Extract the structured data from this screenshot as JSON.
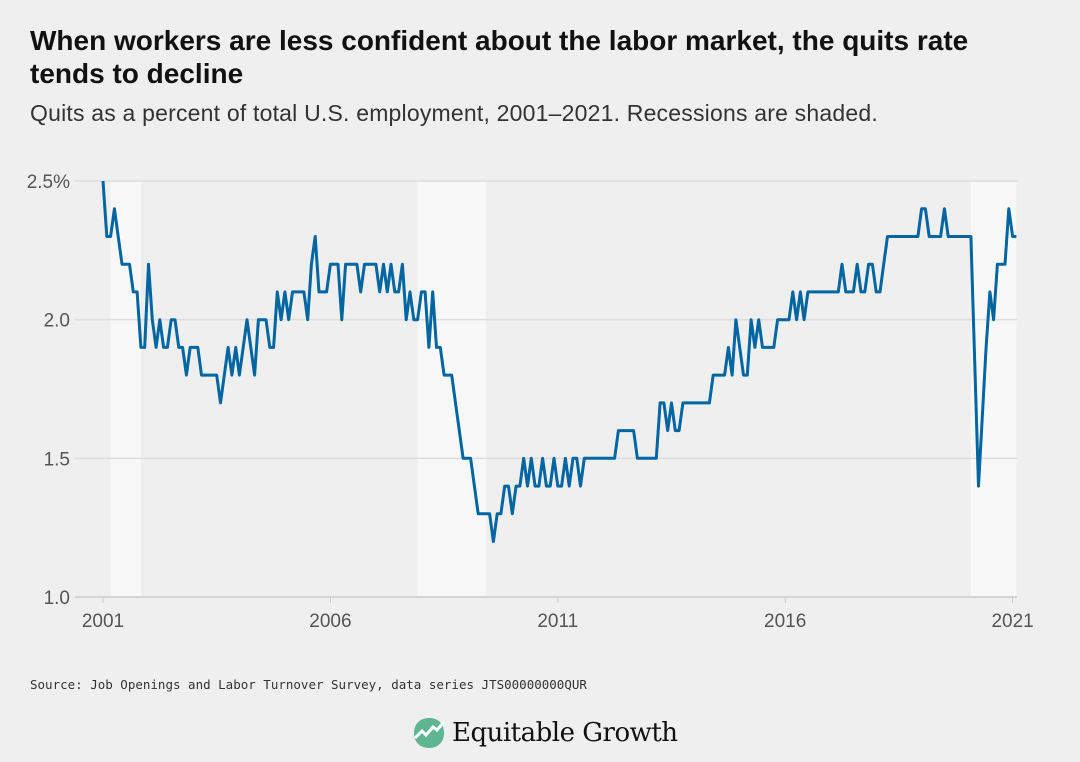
{
  "header": {
    "title": "When workers are less confident about the labor market, the quits rate tends to decline",
    "subtitle": "Quits as a percent of total U.S. employment, 2001–2021. Recessions are shaded."
  },
  "footer": {
    "source": "Source: Job Openings and Labor Turnover Survey, data series JTS00000000QUR",
    "logo_text": "Equitable Growth"
  },
  "colors": {
    "background": "#efefef",
    "line": "#0066a1",
    "recession": "#f8f8f8",
    "grid": "#dddddd",
    "logo": "#5fb591"
  },
  "chart_data": {
    "type": "line",
    "title": "Quits as a percent of total U.S. employment, 2001–2021",
    "xlabel": "",
    "ylabel": "",
    "ylim": [
      1.0,
      2.5
    ],
    "yticks": [
      {
        "v": 1.0,
        "label": "1.0"
      },
      {
        "v": 1.5,
        "label": "1.5"
      },
      {
        "v": 2.0,
        "label": "2.0"
      },
      {
        "v": 2.5,
        "label": "2.5%"
      }
    ],
    "xticks": [
      {
        "v": 2001,
        "label": "2001"
      },
      {
        "v": 2006,
        "label": "2006"
      },
      {
        "v": 2011,
        "label": "2011"
      },
      {
        "v": 2016,
        "label": "2016"
      },
      {
        "v": 2021,
        "label": "2021"
      }
    ],
    "grid": true,
    "start": "2001-01",
    "frequency": "monthly",
    "recessions": [
      [
        "2001-03",
        "2001-11"
      ],
      [
        "2007-12",
        "2009-06"
      ],
      [
        "2020-02",
        "2021-02"
      ]
    ],
    "series": [
      {
        "name": "Quits rate",
        "values": [
          2.5,
          2.3,
          2.3,
          2.4,
          2.3,
          2.2,
          2.2,
          2.2,
          2.1,
          2.1,
          1.9,
          1.9,
          2.2,
          2.0,
          1.9,
          2.0,
          1.9,
          1.9,
          2.0,
          2.0,
          1.9,
          1.9,
          1.8,
          1.9,
          1.9,
          1.9,
          1.8,
          1.8,
          1.8,
          1.8,
          1.8,
          1.7,
          1.8,
          1.9,
          1.8,
          1.9,
          1.8,
          1.9,
          2.0,
          1.9,
          1.8,
          2.0,
          2.0,
          2.0,
          1.9,
          1.9,
          2.1,
          2.0,
          2.1,
          2.0,
          2.1,
          2.1,
          2.1,
          2.1,
          2.0,
          2.2,
          2.3,
          2.1,
          2.1,
          2.1,
          2.2,
          2.2,
          2.2,
          2.0,
          2.2,
          2.2,
          2.2,
          2.2,
          2.1,
          2.2,
          2.2,
          2.2,
          2.2,
          2.1,
          2.2,
          2.1,
          2.2,
          2.1,
          2.1,
          2.2,
          2.0,
          2.1,
          2.0,
          2.0,
          2.1,
          2.1,
          1.9,
          2.1,
          1.9,
          1.9,
          1.8,
          1.8,
          1.8,
          1.7,
          1.6,
          1.5,
          1.5,
          1.5,
          1.4,
          1.3,
          1.3,
          1.3,
          1.3,
          1.2,
          1.3,
          1.3,
          1.4,
          1.4,
          1.3,
          1.4,
          1.4,
          1.5,
          1.4,
          1.5,
          1.4,
          1.4,
          1.5,
          1.4,
          1.4,
          1.5,
          1.4,
          1.4,
          1.5,
          1.4,
          1.5,
          1.5,
          1.4,
          1.5,
          1.5,
          1.5,
          1.5,
          1.5,
          1.5,
          1.5,
          1.5,
          1.5,
          1.6,
          1.6,
          1.6,
          1.6,
          1.6,
          1.5,
          1.5,
          1.5,
          1.5,
          1.5,
          1.5,
          1.7,
          1.7,
          1.6,
          1.7,
          1.6,
          1.6,
          1.7,
          1.7,
          1.7,
          1.7,
          1.7,
          1.7,
          1.7,
          1.7,
          1.8,
          1.8,
          1.8,
          1.8,
          1.9,
          1.8,
          2.0,
          1.9,
          1.8,
          1.8,
          2.0,
          1.9,
          2.0,
          1.9,
          1.9,
          1.9,
          1.9,
          2.0,
          2.0,
          2.0,
          2.0,
          2.1,
          2.0,
          2.1,
          2.0,
          2.1,
          2.1,
          2.1,
          2.1,
          2.1,
          2.1,
          2.1,
          2.1,
          2.1,
          2.2,
          2.1,
          2.1,
          2.1,
          2.2,
          2.1,
          2.1,
          2.2,
          2.2,
          2.1,
          2.1,
          2.2,
          2.3,
          2.3,
          2.3,
          2.3,
          2.3,
          2.3,
          2.3,
          2.3,
          2.3,
          2.4,
          2.4,
          2.3,
          2.3,
          2.3,
          2.3,
          2.4,
          2.3,
          2.3,
          2.3,
          2.3,
          2.3,
          2.3,
          2.3,
          1.85,
          1.4,
          1.65,
          1.9,
          2.1,
          2.0,
          2.2,
          2.2,
          2.2,
          2.4,
          2.3,
          2.3
        ]
      }
    ]
  }
}
